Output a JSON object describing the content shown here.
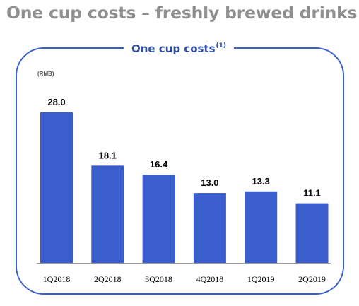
{
  "header": {
    "title": "One cup costs – freshly brewed drinks"
  },
  "panel": {
    "title": "One cup costs",
    "footnote_marker": "(1)"
  },
  "chart_data": {
    "type": "bar",
    "unit_label": "(RMB)",
    "categories": [
      "1Q2018",
      "2Q2018",
      "3Q2018",
      "4Q2018",
      "1Q2019",
      "2Q2019"
    ],
    "values": [
      28.0,
      18.1,
      16.4,
      13.0,
      13.3,
      11.1
    ],
    "value_labels": [
      "28.0",
      "18.1",
      "16.4",
      "13.0",
      "13.3",
      "11.1"
    ],
    "xlabel": "",
    "ylabel": "",
    "ylim": [
      0,
      28.0
    ],
    "grid": false,
    "legend": "none",
    "colors": {
      "bar": "#3a5fcd",
      "border": "#3a5fcd",
      "title": "#8f8f8f",
      "panel_title": "#2d4ea3",
      "text": "#000000",
      "unit_label": "#555555",
      "axis": "#9a9a9a"
    }
  }
}
